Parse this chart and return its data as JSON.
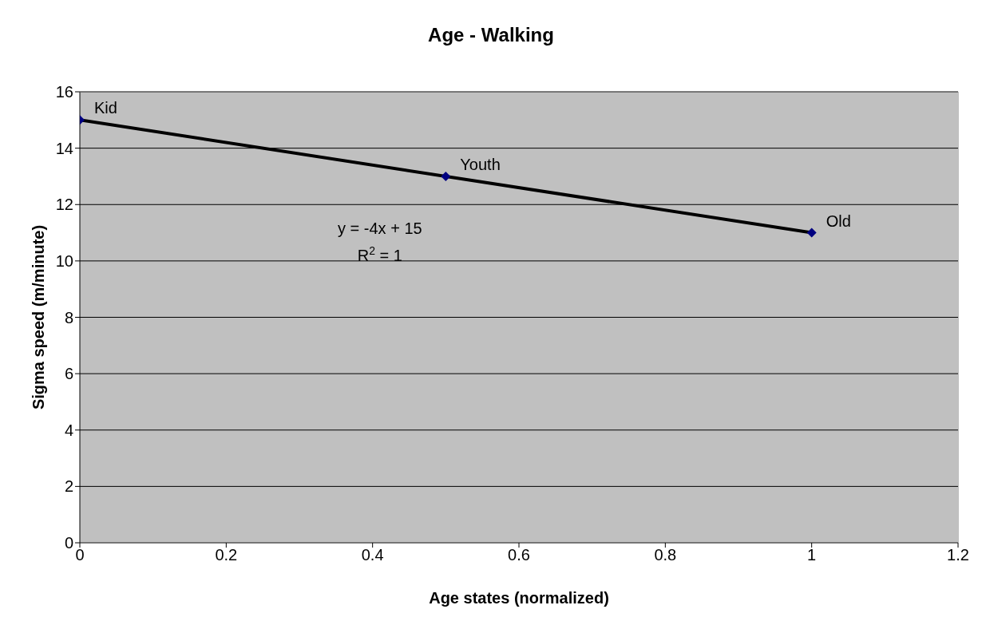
{
  "chart_data": {
    "type": "scatter",
    "title": "Age - Walking",
    "xlabel": "Age states (normalized)",
    "ylabel": "Sigma speed (m/minute)",
    "xlim": [
      0,
      1.2
    ],
    "xticks": [
      0,
      0.2,
      0.4,
      0.6,
      0.8,
      1,
      1.2
    ],
    "ylim": [
      0,
      16
    ],
    "yticks": [
      0,
      2,
      4,
      6,
      8,
      10,
      12,
      14,
      16
    ],
    "grid": "y",
    "legend": false,
    "series": [
      {
        "color": "#000080",
        "marker": "diamond",
        "x": [
          0,
          0.5,
          1
        ],
        "values": [
          15,
          13,
          11
        ]
      },
      {
        "type": "line",
        "color": "#000000",
        "line_style": "solid",
        "x": [
          0,
          1
        ],
        "values": [
          15,
          11
        ]
      }
    ],
    "annotations": [
      {
        "text": "Kid",
        "x": 0,
        "y": 15
      },
      {
        "text": "Youth",
        "x": 0.5,
        "y": 13
      },
      {
        "text": "Old",
        "x": 1,
        "y": 11
      },
      "y = -4x + 15",
      "R$^{2}$ = 1"
    ]
  }
}
